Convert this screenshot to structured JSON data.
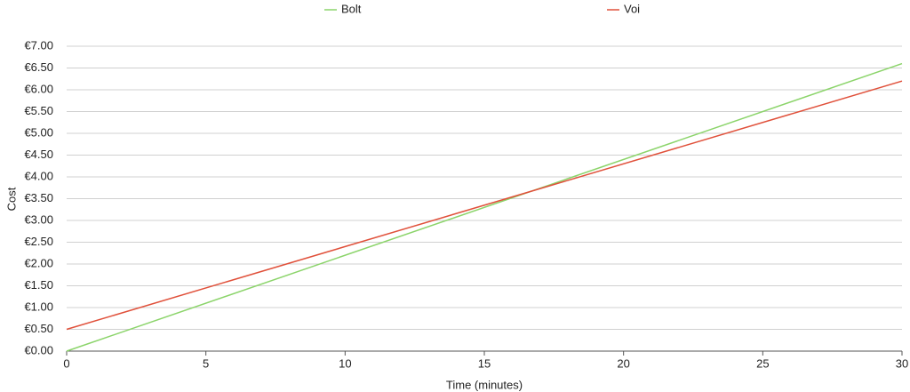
{
  "chart_data": {
    "type": "line",
    "x_label": "Time (minutes)",
    "y_label": "Cost",
    "x": [
      0,
      30
    ],
    "series": [
      {
        "name": "Bolt",
        "color": "#8bd46a",
        "values": [
          0,
          6.6
        ]
      },
      {
        "name": "Voi",
        "color": "#e0503a",
        "values": [
          0.5,
          6.2
        ]
      }
    ],
    "xlim": [
      0,
      30
    ],
    "xticks": [
      0,
      5,
      10,
      15,
      20,
      25,
      30
    ],
    "ylim": [
      0,
      7
    ],
    "yticks": [
      {
        "value": 0,
        "label": "€0.00"
      },
      {
        "value": 0.5,
        "label": "€0.50"
      },
      {
        "value": 1,
        "label": "€1.00"
      },
      {
        "value": 1.5,
        "label": "€1.50"
      },
      {
        "value": 2,
        "label": "€2.00"
      },
      {
        "value": 2.5,
        "label": "€2.50"
      },
      {
        "value": 3,
        "label": "€3.00"
      },
      {
        "value": 3.5,
        "label": "€3.50"
      },
      {
        "value": 4,
        "label": "€4.00"
      },
      {
        "value": 4.5,
        "label": "€4.50"
      },
      {
        "value": 5,
        "label": "€5.00"
      },
      {
        "value": 5.5,
        "label": "€5.50"
      },
      {
        "value": 6,
        "label": "€6.00"
      },
      {
        "value": 6.5,
        "label": "€6.50"
      },
      {
        "value": 7,
        "label": "€7.00"
      }
    ],
    "grid": true,
    "legend": "top"
  }
}
